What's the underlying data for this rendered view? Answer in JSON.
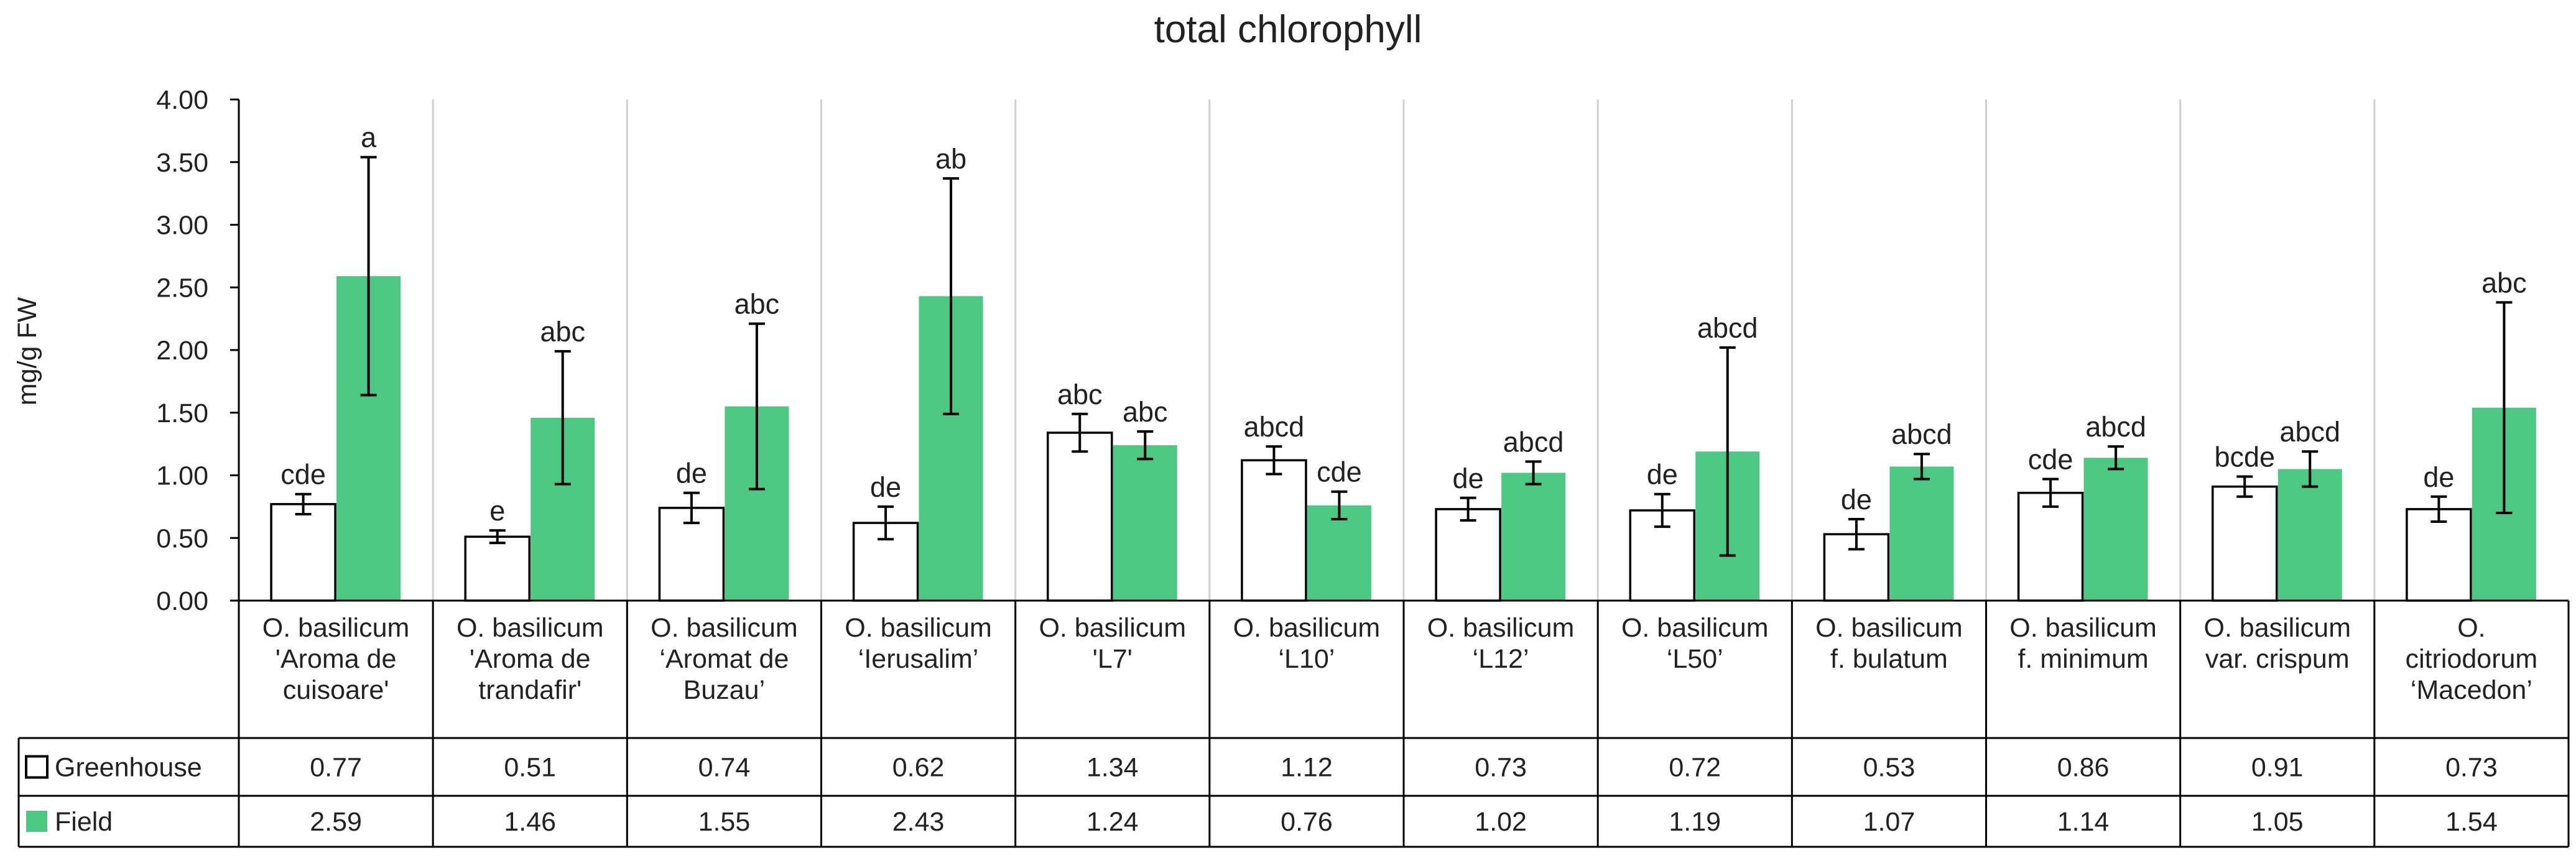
{
  "chart_data": {
    "type": "bar",
    "title": "total chlorophyll",
    "xlabel": "",
    "ylabel": "mg/g  FW",
    "ylim": [
      0,
      4
    ],
    "yticks": [
      "0.00",
      "0.50",
      "1.00",
      "1.50",
      "2.00",
      "2.50",
      "3.00",
      "3.50",
      "4.00"
    ],
    "grid": "vertical separators between categories",
    "legend": "left of data table",
    "categories": [
      [
        "O. basilicum",
        "'Aroma de",
        "cuisoare'"
      ],
      [
        "O. basilicum",
        "'Aroma de",
        "trandafir'"
      ],
      [
        "O. basilicum",
        "‘Aromat de",
        "Buzau’"
      ],
      [
        "O. basilicum",
        "‘Ierusalim’"
      ],
      [
        "O. basilicum",
        "'L7'"
      ],
      [
        "O. basilicum",
        "‘L10’"
      ],
      [
        "O. basilicum",
        "‘L12’"
      ],
      [
        "O. basilicum",
        "‘L50’"
      ],
      [
        "O. basilicum",
        "f. bulatum"
      ],
      [
        "O. basilicum",
        "f. minimum"
      ],
      [
        "O. basilicum",
        "var. crispum"
      ],
      [
        "O.",
        "citriodorum",
        "‘Macedon’"
      ]
    ],
    "series": [
      {
        "name": "Greenhouse",
        "fill": "#ffffff",
        "stroke": "#000000",
        "values": [
          0.77,
          0.51,
          0.74,
          0.62,
          1.34,
          1.12,
          0.73,
          0.72,
          0.53,
          0.86,
          0.91,
          0.73
        ],
        "value_labels": [
          "0.77",
          "0.51",
          "0.74",
          "0.62",
          "1.34",
          "1.12",
          "0.73",
          "0.72",
          "0.53",
          "0.86",
          "0.91",
          "0.73"
        ],
        "errors": [
          0.08,
          0.05,
          0.12,
          0.13,
          0.15,
          0.11,
          0.09,
          0.13,
          0.12,
          0.11,
          0.08,
          0.1
        ],
        "letters": [
          "cde",
          "e",
          "de",
          "de",
          "abc",
          "abcd",
          "de",
          "de",
          "de",
          "cde",
          "bcde",
          "de"
        ]
      },
      {
        "name": "Field",
        "fill": "#4dc882",
        "stroke": "#4dc882",
        "values": [
          2.59,
          1.46,
          1.55,
          2.43,
          1.24,
          0.76,
          1.02,
          1.19,
          1.07,
          1.14,
          1.05,
          1.54
        ],
        "value_labels": [
          "2.59",
          "1.46",
          "1.55",
          "2.43",
          "1.24",
          "0.76",
          "1.02",
          "1.19",
          "1.07",
          "1.14",
          "1.05",
          "1.54"
        ],
        "errors": [
          0.95,
          0.53,
          0.66,
          0.94,
          0.11,
          0.11,
          0.09,
          0.83,
          0.1,
          0.09,
          0.14,
          0.84
        ],
        "letters": [
          "a",
          "abc",
          "abc",
          "ab",
          "abc",
          "cde",
          "abcd",
          "abcd",
          "abcd",
          "abcd",
          "abcd",
          "abc"
        ]
      }
    ]
  }
}
